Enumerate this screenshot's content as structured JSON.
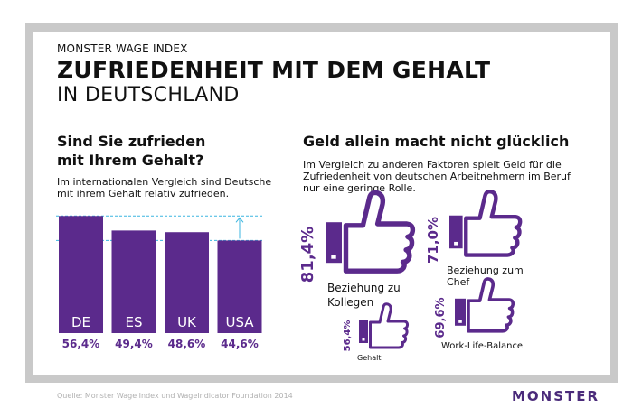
{
  "header": {
    "kicker": "MONSTER WAGE INDEX",
    "title_line1": "ZUFRIEDENHEIT MIT DEM GEHALT",
    "title_line2": "IN DEUTSCHLAND"
  },
  "left": {
    "heading_line1": "Sind Sie zufrieden",
    "heading_line2": "mit Ihrem Gehalt?",
    "desc_line1": "Im internationalen Vergleich sind Deutsche",
    "desc_line2": "mit ihrem Gehalt relativ zufrieden."
  },
  "right": {
    "heading": "Geld allein macht nicht glücklich",
    "desc_line1": "Im Vergleich zu anderen Faktoren spielt Geld für die",
    "desc_line2": "Zufriedenheit von deutschen Arbeitnehmern im Beruf",
    "desc_line3": "nur eine geringe Rolle."
  },
  "footer": {
    "source": "Quelle: Monster Wage Index und WageIndicator Foundation 2014",
    "logo": "MONSTER"
  },
  "colors": {
    "purple": "#5b2a8c",
    "accent_line": "#3bb6e0",
    "frame": "#c9c9c9"
  },
  "chart_data": [
    {
      "type": "bar",
      "categories": [
        "DE",
        "ES",
        "UK",
        "USA"
      ],
      "values": [
        56.4,
        49.4,
        48.6,
        44.6
      ],
      "value_labels": [
        "56,4%",
        "49,4%",
        "48,6%",
        "44,6%"
      ]
    },
    {
      "type": "bar",
      "categories": [
        "Beziehung zu Kollegen",
        "Beziehung zum Chef",
        "Work-Life-Balance",
        "Gehalt"
      ],
      "values": [
        81.4,
        71.0,
        69.6,
        56.4
      ],
      "value_labels": [
        "81,4%",
        "71,0%",
        "69,6%",
        "56,4%"
      ],
      "icon": "thumbs-up-icon"
    }
  ]
}
